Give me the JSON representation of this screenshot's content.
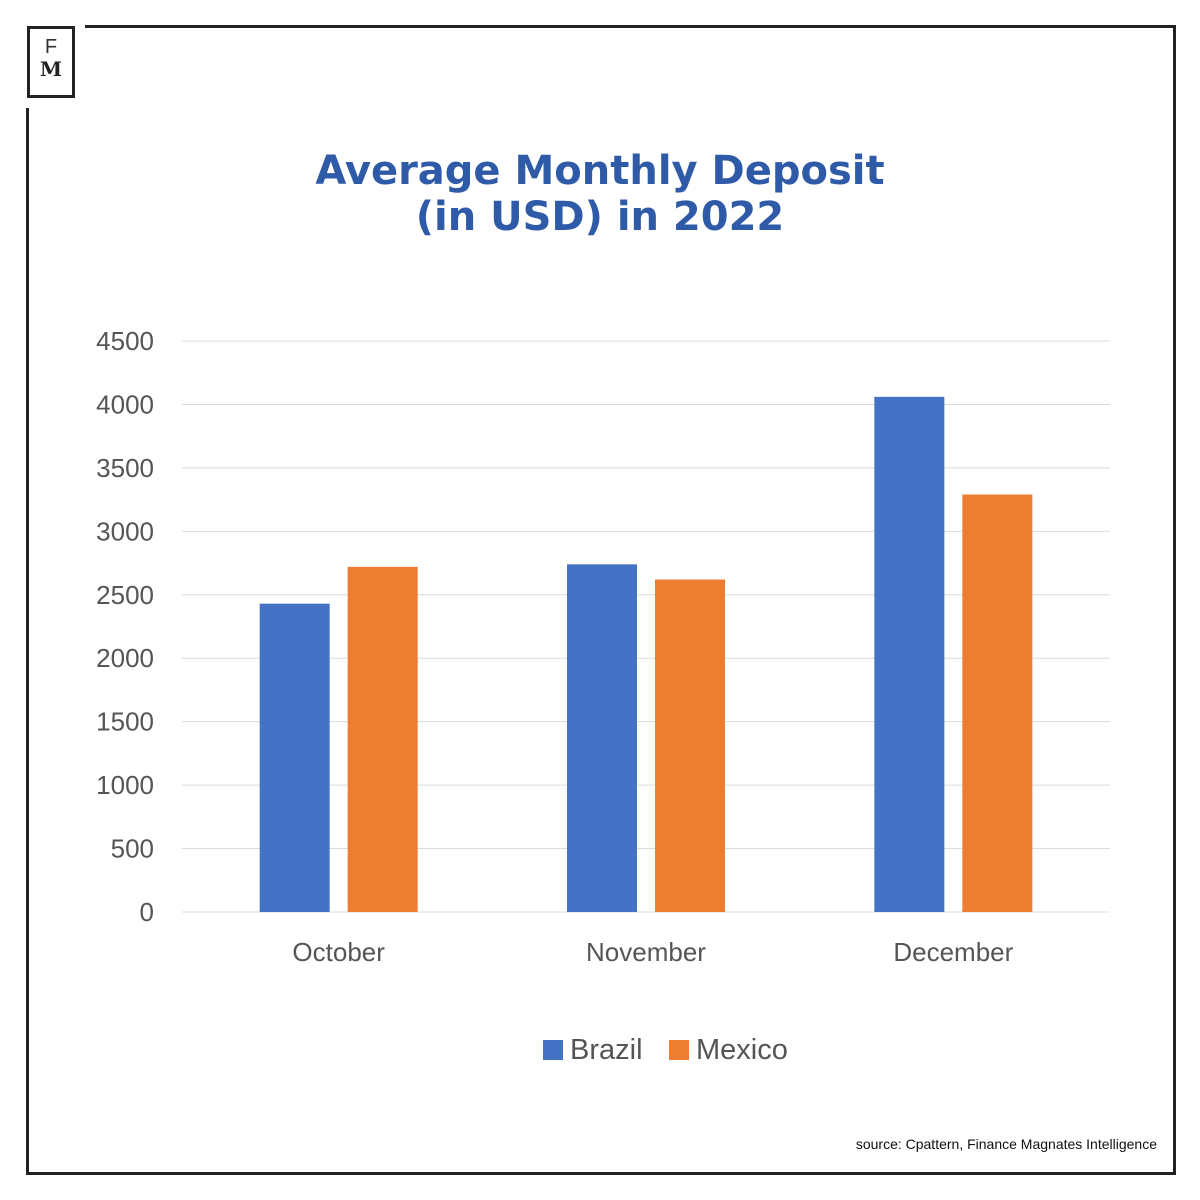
{
  "logo": {
    "line1": "F",
    "line2": "M"
  },
  "chart_data": {
    "type": "bar",
    "title": "Average Monthly Deposit\n(in USD) in 2022",
    "title_lines": [
      "Average Monthly Deposit",
      "(in USD) in 2022"
    ],
    "categories": [
      "October",
      "November",
      "December"
    ],
    "series": [
      {
        "name": "Brazil",
        "color": "#4472c4",
        "values": [
          2430,
          2740,
          4060
        ]
      },
      {
        "name": "Mexico",
        "color": "#ed7d31",
        "values": [
          2720,
          2620,
          3290
        ]
      }
    ],
    "xlabel": "",
    "ylabel": "",
    "ylim": [
      0,
      4500
    ],
    "yticks": [
      0,
      500,
      1000,
      1500,
      2000,
      2500,
      3000,
      3500,
      4000,
      4500
    ],
    "grid": true,
    "legend": "bottom"
  },
  "source": "source: Cpattern, Finance Magnates Intelligence"
}
